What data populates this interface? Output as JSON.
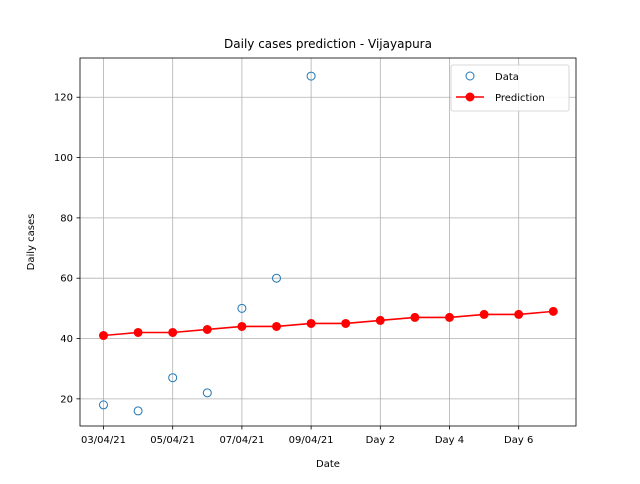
{
  "chart_data": {
    "type": "line",
    "title": "Daily cases prediction - Vijayapura",
    "xlabel": "Date",
    "ylabel": "Daily cases",
    "x_tick_labels": [
      "03/04/21",
      "05/04/21",
      "07/04/21",
      "09/04/21",
      "Day 2",
      "Day 4",
      "Day 6"
    ],
    "y_ticks": [
      20,
      40,
      60,
      80,
      100,
      120
    ],
    "ylim": [
      11,
      133
    ],
    "grid": true,
    "legend_position": "top-right",
    "series": [
      {
        "name": "Data",
        "style": "open-circle",
        "color": "#1f77b4",
        "x": [
          "03/04/21",
          "04/04/21",
          "05/04/21",
          "06/04/21",
          "07/04/21",
          "08/04/21",
          "09/04/21"
        ],
        "values": [
          18,
          16,
          27,
          22,
          50,
          60,
          127
        ]
      },
      {
        "name": "Prediction",
        "style": "line-marker",
        "color": "#ff0000",
        "x": [
          "03/04/21",
          "04/04/21",
          "05/04/21",
          "06/04/21",
          "07/04/21",
          "08/04/21",
          "09/04/21",
          "Day 1",
          "Day 2",
          "Day 3",
          "Day 4",
          "Day 5",
          "Day 6",
          "Day 7"
        ],
        "values": [
          41,
          42,
          42,
          43,
          44,
          44,
          45,
          45,
          46,
          47,
          47,
          48,
          48,
          49
        ]
      }
    ]
  }
}
